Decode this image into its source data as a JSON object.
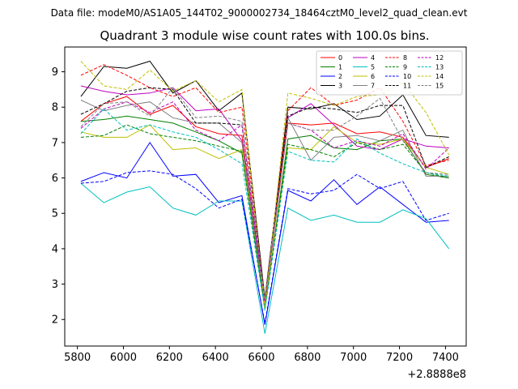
{
  "figure": {
    "suptitle": "Data file: modeM0/AS1A05_144T02_9000002734_18464cztM0_level2_quad_clean.evt"
  },
  "chart_data": {
    "type": "line",
    "title": "Quadrant 3 module wise count rates with 100.0s bins.",
    "xlabel": "",
    "ylabel": "",
    "x_offset_label": "+2.8888e8",
    "x": [
      5815,
      5915,
      6015,
      6115,
      6215,
      6315,
      6415,
      6515,
      6615,
      6715,
      6815,
      6915,
      7015,
      7115,
      7215,
      7315,
      7415
    ],
    "xlim": [
      5745,
      7490
    ],
    "ylim": [
      1.25,
      9.7
    ],
    "xticks": [
      5800,
      6000,
      6200,
      6400,
      6600,
      6800,
      7000,
      7200,
      7400
    ],
    "yticks": [
      2,
      3,
      4,
      5,
      6,
      7,
      8,
      9
    ],
    "grid": false,
    "legend": {
      "placement": "top-right",
      "columns": 4
    },
    "series": [
      {
        "name": "0",
        "color": "#ff0000",
        "dash": "solid",
        "values": [
          7.6,
          8.1,
          8.3,
          7.8,
          8.05,
          7.45,
          7.25,
          7.2,
          2.45,
          7.55,
          7.5,
          7.55,
          7.25,
          7.3,
          7.15,
          6.3,
          6.55
        ]
      },
      {
        "name": "1",
        "color": "#008000",
        "dash": "solid",
        "values": [
          7.6,
          7.65,
          7.75,
          7.65,
          7.55,
          7.3,
          7.05,
          6.7,
          2.3,
          7.1,
          7.2,
          6.85,
          6.8,
          7.05,
          7.1,
          6.1,
          6.0
        ]
      },
      {
        "name": "2",
        "color": "#0000ff",
        "dash": "solid",
        "values": [
          5.9,
          6.15,
          6.0,
          7.0,
          6.05,
          6.1,
          5.3,
          5.5,
          1.85,
          5.65,
          5.35,
          5.95,
          5.25,
          5.75,
          5.25,
          4.75,
          4.8
        ]
      },
      {
        "name": "3",
        "color": "#000000",
        "dash": "solid",
        "values": [
          8.3,
          9.15,
          9.1,
          9.3,
          8.4,
          8.75,
          7.9,
          8.4,
          2.6,
          8.0,
          7.95,
          8.1,
          7.65,
          7.75,
          8.35,
          7.2,
          7.15
        ]
      },
      {
        "name": "4",
        "color": "#bf00bf",
        "dash": "solid",
        "values": [
          8.6,
          8.45,
          8.35,
          8.4,
          8.55,
          7.9,
          7.95,
          7.05,
          2.55,
          7.7,
          8.1,
          7.5,
          6.9,
          6.8,
          7.1,
          6.9,
          6.85
        ]
      },
      {
        "name": "5",
        "color": "#00bfbf",
        "dash": "solid",
        "values": [
          5.85,
          5.3,
          5.6,
          5.75,
          5.15,
          4.95,
          5.35,
          5.35,
          1.6,
          5.15,
          4.8,
          4.95,
          4.75,
          4.75,
          5.1,
          4.85,
          4.0
        ]
      },
      {
        "name": "6",
        "color": "#bfbf00",
        "dash": "solid",
        "values": [
          7.3,
          7.15,
          7.15,
          7.5,
          6.8,
          6.85,
          6.55,
          6.8,
          2.4,
          6.85,
          6.8,
          7.45,
          7.0,
          6.95,
          7.1,
          6.3,
          6.1
        ]
      },
      {
        "name": "7",
        "color": "#808080",
        "dash": "solid",
        "values": [
          8.2,
          7.9,
          8.05,
          8.15,
          7.7,
          7.55,
          7.55,
          7.0,
          2.4,
          7.7,
          6.5,
          7.15,
          7.2,
          7.05,
          7.35,
          6.05,
          6.05
        ]
      },
      {
        "name": "8",
        "color": "#ff0000",
        "dash": "dashed",
        "values": [
          8.9,
          9.2,
          8.9,
          8.55,
          8.3,
          8.55,
          7.85,
          8.0,
          2.55,
          7.9,
          8.55,
          8.05,
          8.2,
          8.55,
          7.6,
          6.35,
          6.5
        ]
      },
      {
        "name": "9",
        "color": "#008000",
        "dash": "dashed",
        "values": [
          7.15,
          7.2,
          7.5,
          7.25,
          7.15,
          7.05,
          6.9,
          6.75,
          2.3,
          6.95,
          6.8,
          6.6,
          7.0,
          6.8,
          6.95,
          6.15,
          6.0
        ]
      },
      {
        "name": "10",
        "color": "#0000ff",
        "dash": "dashed",
        "values": [
          5.85,
          5.9,
          6.15,
          6.2,
          6.1,
          5.7,
          5.15,
          5.4,
          1.9,
          5.7,
          5.55,
          5.65,
          6.1,
          5.7,
          5.9,
          4.8,
          5.0
        ]
      },
      {
        "name": "11",
        "color": "#000000",
        "dash": "dashed",
        "values": [
          7.8,
          8.1,
          8.45,
          8.55,
          8.5,
          7.55,
          7.55,
          7.5,
          2.55,
          7.75,
          8.0,
          7.95,
          7.85,
          8.05,
          8.05,
          6.3,
          6.6
        ]
      },
      {
        "name": "12",
        "color": "#bf00bf",
        "dash": "dashed",
        "values": [
          7.4,
          7.95,
          8.15,
          7.85,
          8.15,
          7.35,
          7.05,
          7.5,
          2.5,
          7.55,
          7.35,
          6.85,
          7.05,
          6.9,
          7.25,
          6.25,
          6.85
        ]
      },
      {
        "name": "13",
        "color": "#00bfbf",
        "dash": "dashed",
        "values": [
          7.25,
          7.95,
          7.35,
          7.5,
          7.3,
          7.15,
          6.8,
          6.4,
          2.25,
          6.75,
          6.5,
          6.45,
          7.1,
          6.7,
          6.4,
          6.15,
          6.05
        ]
      },
      {
        "name": "14",
        "color": "#bfbf00",
        "dash": "dashed",
        "values": [
          9.3,
          8.6,
          8.5,
          9.05,
          8.45,
          8.75,
          8.15,
          8.5,
          2.35,
          8.4,
          8.25,
          8.05,
          8.3,
          8.35,
          8.7,
          7.85,
          6.65
        ]
      },
      {
        "name": "15",
        "color": "#808080",
        "dash": "dashed",
        "values": [
          7.45,
          8.1,
          8.15,
          7.75,
          8.55,
          7.7,
          7.75,
          7.6,
          2.6,
          7.55,
          7.35,
          7.35,
          7.75,
          8.25,
          7.05,
          6.15,
          6.1
        ]
      }
    ]
  }
}
